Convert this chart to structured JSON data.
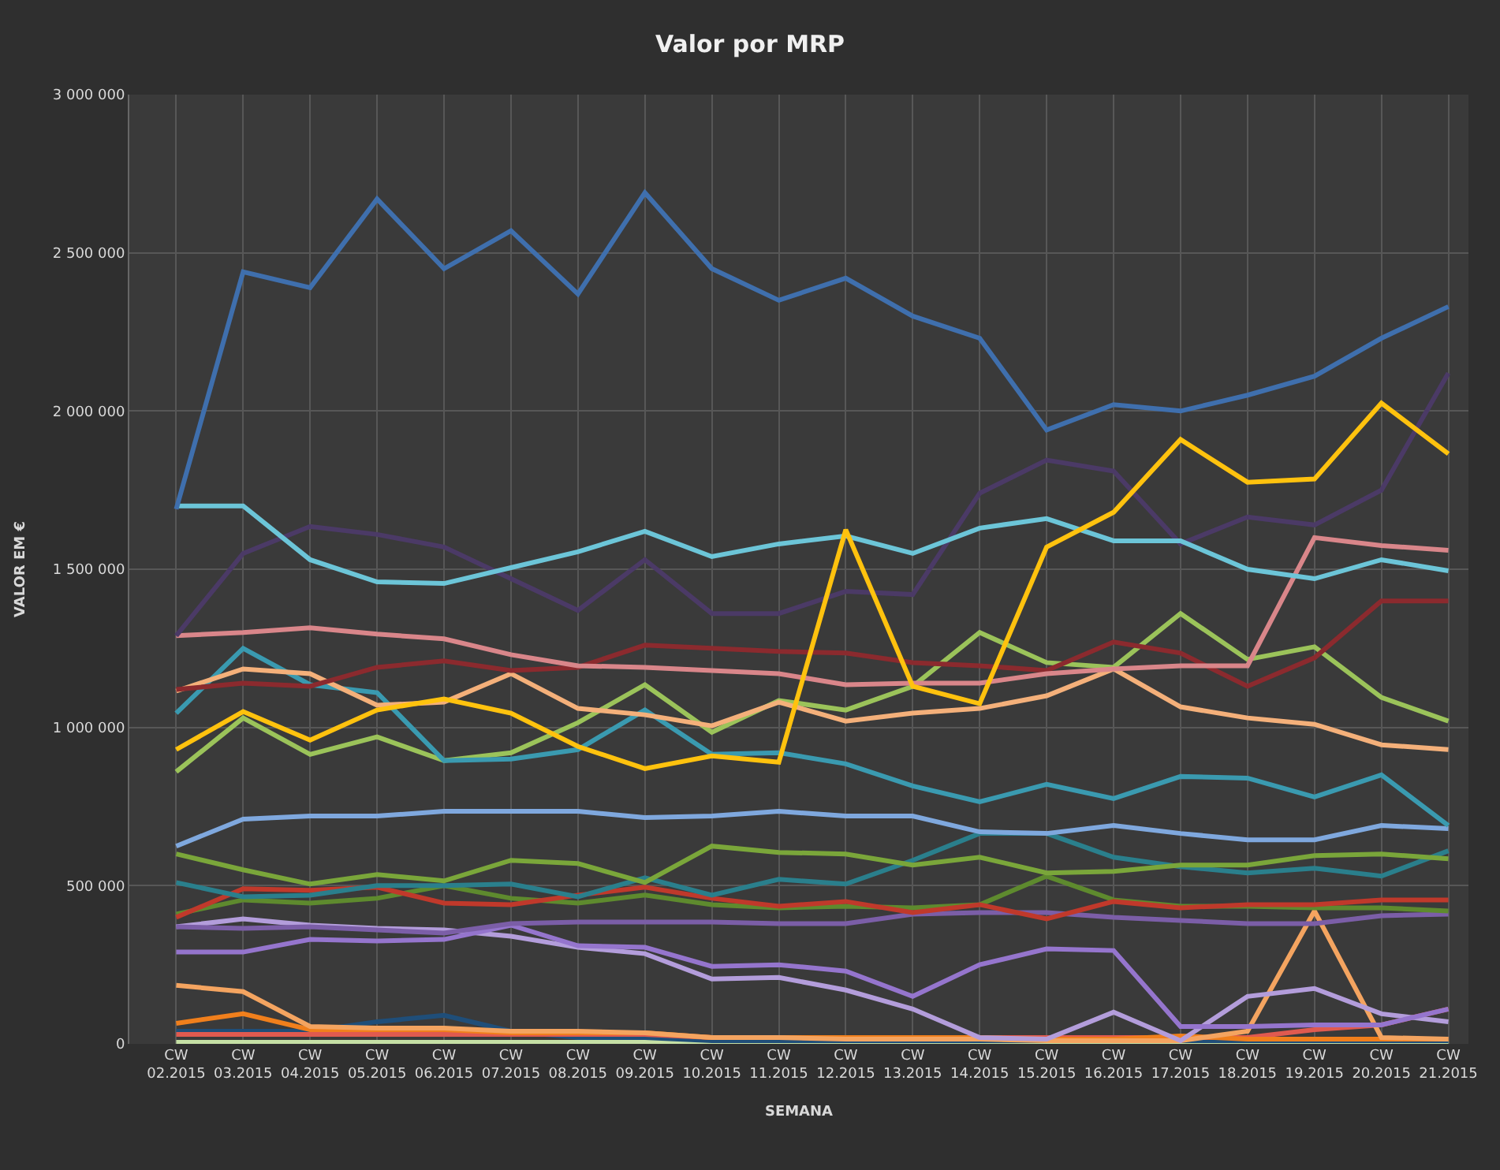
{
  "chart_data": {
    "type": "line",
    "title": "Valor por MRP",
    "xlabel": "SEMANA",
    "ylabel": "VALOR EM €",
    "categories": [
      "CW\n02.2015",
      "CW\n03.2015",
      "CW\n04.2015",
      "CW\n05.2015",
      "CW\n06.2015",
      "CW\n07.2015",
      "CW\n08.2015",
      "CW\n09.2015",
      "CW\n10.2015",
      "CW\n11.2015",
      "CW\n12.2015",
      "CW\n13.2015",
      "CW\n14.2015",
      "CW\n15.2015",
      "CW\n16.2015",
      "CW\n17.2015",
      "CW\n18.2015",
      "CW\n19.2015",
      "CW\n20.2015",
      "CW\n21.2015"
    ],
    "ylim": [
      0,
      3000000
    ],
    "yticks": [
      {
        "value": 0,
        "label": "0"
      },
      {
        "value": 500000,
        "label": "500 000"
      },
      {
        "value": 1000000,
        "label": "1 000 000"
      },
      {
        "value": 1500000,
        "label": "1 500 000"
      },
      {
        "value": 2000000,
        "label": "2 000 000"
      },
      {
        "value": 2500000,
        "label": "2 500 000"
      },
      {
        "value": 3000000,
        "label": "3 000 000"
      }
    ],
    "grid": true,
    "marker": "none",
    "line_style": "solid",
    "series": [
      {
        "color": "#c5e0a5",
        "values": [
          5000,
          5000,
          5000,
          5000,
          5000,
          5000,
          5000,
          5000,
          5000,
          5000,
          5000,
          5000,
          5000,
          5000,
          5000,
          5000,
          5000,
          5000,
          5000,
          5000
        ]
      },
      {
        "color": "#1f4e79",
        "values": [
          40000,
          40000,
          40000,
          70000,
          90000,
          40000,
          20000,
          20000,
          10000,
          10000,
          10000,
          10000,
          10000,
          10000,
          10000,
          10000,
          10000,
          10000,
          10000,
          10000
        ]
      },
      {
        "color": "#e05a4f",
        "values": [
          30000,
          30000,
          30000,
          30000,
          30000,
          30000,
          30000,
          30000,
          20000,
          20000,
          20000,
          20000,
          20000,
          20000,
          20000,
          20000,
          20000,
          45000,
          60000,
          110000
        ]
      },
      {
        "color": "#f07f1c",
        "values": [
          65000,
          95000,
          45000,
          45000,
          45000,
          35000,
          35000,
          35000,
          20000,
          20000,
          20000,
          20000,
          20000,
          15000,
          15000,
          25000,
          15000,
          15000,
          15000,
          15000
        ]
      },
      {
        "color": "#f4a460",
        "values": [
          185000,
          165000,
          55000,
          50000,
          50000,
          40000,
          40000,
          35000,
          20000,
          20000,
          15000,
          15000,
          15000,
          10000,
          10000,
          10000,
          40000,
          420000,
          20000,
          15000
        ]
      },
      {
        "color": "#b39ddb",
        "values": [
          370000,
          395000,
          375000,
          365000,
          360000,
          340000,
          305000,
          285000,
          205000,
          210000,
          170000,
          110000,
          20000,
          15000,
          100000,
          10000,
          150000,
          175000,
          95000,
          70000
        ]
      },
      {
        "color": "#9575cd",
        "values": [
          290000,
          290000,
          330000,
          325000,
          330000,
          375000,
          310000,
          305000,
          245000,
          250000,
          230000,
          150000,
          250000,
          300000,
          295000,
          55000,
          55000,
          60000,
          60000,
          110000
        ]
      },
      {
        "color": "#7b5ea7",
        "values": [
          370000,
          365000,
          370000,
          360000,
          350000,
          380000,
          385000,
          385000,
          385000,
          380000,
          380000,
          410000,
          415000,
          415000,
          400000,
          390000,
          380000,
          380000,
          405000,
          410000
        ]
      },
      {
        "color": "#5e8a2e",
        "values": [
          410000,
          455000,
          445000,
          460000,
          500000,
          460000,
          445000,
          470000,
          440000,
          430000,
          435000,
          430000,
          440000,
          530000,
          455000,
          435000,
          435000,
          430000,
          430000,
          420000
        ]
      },
      {
        "color": "#c0392b",
        "values": [
          400000,
          490000,
          485000,
          495000,
          445000,
          440000,
          470000,
          495000,
          460000,
          435000,
          450000,
          415000,
          440000,
          395000,
          450000,
          430000,
          440000,
          440000,
          455000,
          455000
        ]
      },
      {
        "color": "#2a7f8c",
        "values": [
          510000,
          465000,
          470000,
          500000,
          500000,
          505000,
          465000,
          525000,
          470000,
          520000,
          505000,
          580000,
          665000,
          665000,
          590000,
          560000,
          540000,
          555000,
          530000,
          610000
        ]
      },
      {
        "color": "#7aa63a",
        "values": [
          600000,
          550000,
          505000,
          535000,
          515000,
          580000,
          570000,
          510000,
          625000,
          605000,
          600000,
          565000,
          590000,
          540000,
          545000,
          565000,
          565000,
          595000,
          600000,
          585000
        ]
      },
      {
        "color": "#7fa8de",
        "values": [
          625000,
          710000,
          720000,
          720000,
          735000,
          735000,
          735000,
          715000,
          720000,
          735000,
          720000,
          720000,
          670000,
          665000,
          690000,
          665000,
          645000,
          645000,
          690000,
          680000
        ]
      },
      {
        "color": "#9bc35a",
        "values": [
          860000,
          1030000,
          915000,
          970000,
          895000,
          920000,
          1015000,
          1135000,
          985000,
          1085000,
          1055000,
          1130000,
          1300000,
          1205000,
          1190000,
          1360000,
          1215000,
          1255000,
          1095000,
          1020000
        ]
      },
      {
        "color": "#3a9ab0",
        "values": [
          1045000,
          1250000,
          1135000,
          1110000,
          895000,
          900000,
          930000,
          1055000,
          915000,
          920000,
          885000,
          815000,
          765000,
          820000,
          775000,
          845000,
          840000,
          780000,
          850000,
          690000
        ]
      },
      {
        "color": "#f4b07a",
        "values": [
          1115000,
          1185000,
          1170000,
          1070000,
          1080000,
          1170000,
          1060000,
          1040000,
          1005000,
          1080000,
          1020000,
          1045000,
          1060000,
          1100000,
          1185000,
          1065000,
          1030000,
          1010000,
          945000,
          930000
        ]
      },
      {
        "color": "#8b2a2e",
        "values": [
          1120000,
          1140000,
          1130000,
          1190000,
          1210000,
          1180000,
          1190000,
          1260000,
          1250000,
          1240000,
          1235000,
          1205000,
          1195000,
          1180000,
          1270000,
          1235000,
          1130000,
          1220000,
          1400000,
          1400000
        ]
      },
      {
        "color": "#d9868a",
        "values": [
          1290000,
          1300000,
          1315000,
          1295000,
          1280000,
          1230000,
          1195000,
          1190000,
          1180000,
          1170000,
          1135000,
          1140000,
          1140000,
          1170000,
          1185000,
          1195000,
          1195000,
          1600000,
          1575000,
          1560000
        ]
      },
      {
        "color": "#4b3a66",
        "values": [
          1290000,
          1550000,
          1635000,
          1610000,
          1570000,
          1470000,
          1370000,
          1530000,
          1360000,
          1360000,
          1430000,
          1420000,
          1740000,
          1845000,
          1810000,
          1580000,
          1665000,
          1640000,
          1750000,
          2120000
        ]
      },
      {
        "color": "#6cc5d8",
        "values": [
          1700000,
          1700000,
          1530000,
          1460000,
          1455000,
          1505000,
          1555000,
          1620000,
          1540000,
          1580000,
          1605000,
          1550000,
          1630000,
          1660000,
          1590000,
          1590000,
          1500000,
          1470000,
          1530000,
          1495000
        ]
      },
      {
        "color": "#ffc20e",
        "values": [
          930000,
          1050000,
          960000,
          1055000,
          1090000,
          1045000,
          940000,
          870000,
          910000,
          890000,
          1625000,
          1130000,
          1075000,
          1570000,
          1680000,
          1910000,
          1775000,
          1785000,
          2025000,
          1865000
        ]
      },
      {
        "color": "#3f6fad",
        "values": [
          1690000,
          2440000,
          2390000,
          2670000,
          2450000,
          2570000,
          2370000,
          2690000,
          2450000,
          2350000,
          2420000,
          2300000,
          2230000,
          1940000,
          2020000,
          2000000,
          2050000,
          2110000,
          2230000,
          2330000
        ]
      }
    ]
  }
}
